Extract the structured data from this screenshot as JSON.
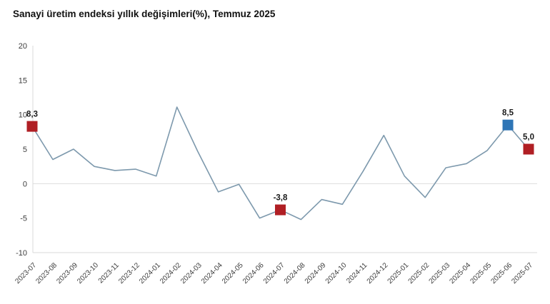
{
  "colors": {
    "background": "#ffffff",
    "line": "#7d99ad",
    "marker_red": "#b01f24",
    "marker_blue": "#2e75b6",
    "zero_gridline": "#dddddd",
    "axis_line": "#d9d9d9",
    "tick_text": "#3c3c3c",
    "annotation_text": "#1a1a1a",
    "title_text": "#111111"
  },
  "chart_data": {
    "type": "line",
    "title": "Sanayi üretim endeksi yıllık değişimleri(%), Temmuz 2025",
    "xlabel": "",
    "ylabel": "",
    "x": [
      "2023-07",
      "2023-08",
      "2023-09",
      "2023-10",
      "2023-11",
      "2023-12",
      "2024-01",
      "2024-02",
      "2024-03",
      "2024-04",
      "2024-05",
      "2024-06",
      "2024-07",
      "2024-08",
      "2024-09",
      "2024-10",
      "2024-11",
      "2024-12",
      "2025-01",
      "2025-02",
      "2025-03",
      "2025-04",
      "2025-05",
      "2025-06",
      "2025-07"
    ],
    "values": [
      8.3,
      3.5,
      5.0,
      2.5,
      1.9,
      2.1,
      1.1,
      11.1,
      4.7,
      -1.2,
      -0.1,
      -5.0,
      -3.8,
      -5.2,
      -2.3,
      -3.0,
      1.8,
      7.0,
      1.1,
      -2.0,
      2.3,
      2.9,
      4.8,
      8.5,
      5.0
    ],
    "ylim": [
      -10,
      20
    ],
    "y_ticks": [
      20,
      15,
      10,
      5,
      0,
      -5,
      -10
    ],
    "grid": "zero-line-only",
    "legend": "none",
    "annotated_points": [
      {
        "x": "2023-07",
        "value": 8.3,
        "label": "8,3",
        "marker": "square",
        "color": "red"
      },
      {
        "x": "2024-07",
        "value": -3.8,
        "label": "-3,8",
        "marker": "square",
        "color": "red"
      },
      {
        "x": "2025-06",
        "value": 8.5,
        "label": "8,5",
        "marker": "square",
        "color": "blue"
      },
      {
        "x": "2025-07",
        "value": 5.0,
        "label": "5,0",
        "marker": "square",
        "color": "red"
      }
    ]
  }
}
